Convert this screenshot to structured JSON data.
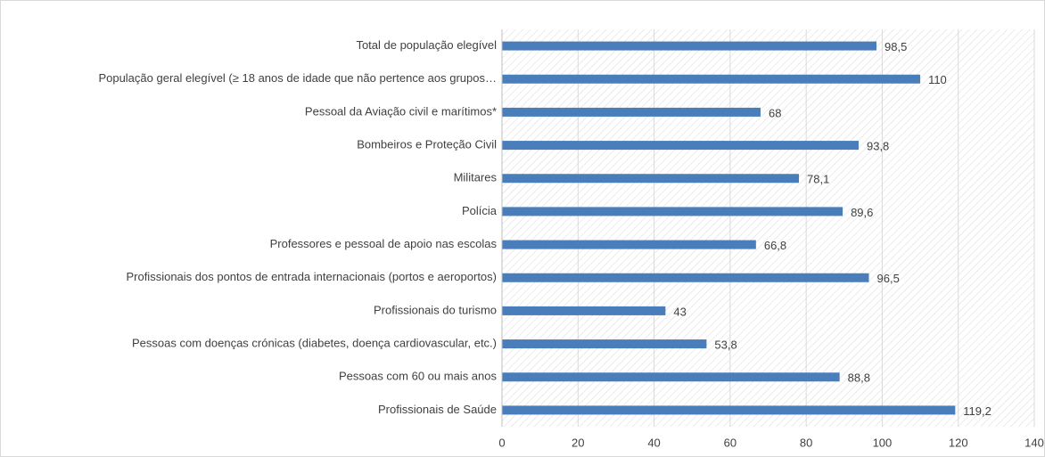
{
  "chart_data": {
    "type": "bar",
    "orientation": "horizontal",
    "categories": [
      "Total de população elegível",
      "População geral elegível (≥ 18 anos de idade que não pertence aos grupos…",
      "Pessoal da Aviação civil e marítimos*",
      "Bombeiros e Proteção Civil",
      "Militares",
      "Polícia",
      "Professores e pessoal de apoio nas escolas",
      "Profissionais dos pontos de entrada internacionais (portos e aeroportos)",
      "Profissionais do turismo",
      "Pessoas com doenças crónicas (diabetes, doença cardiovascular, etc.)",
      "Pessoas com 60 ou mais anos",
      "Profissionais de Saúde"
    ],
    "values": [
      98.5,
      110,
      68,
      93.8,
      78.1,
      89.6,
      66.8,
      96.5,
      43,
      53.8,
      88.8,
      119.2
    ],
    "value_labels": [
      "98,5",
      "110",
      "68",
      "93,8",
      "78,1",
      "89,6",
      "66,8",
      "96,5",
      "43",
      "53,8",
      "88,8",
      "119,2"
    ],
    "color": "#4a7ebb",
    "xlim": [
      0,
      140
    ],
    "xticks": [
      0,
      20,
      40,
      60,
      80,
      100,
      120,
      140
    ],
    "grid": true
  }
}
